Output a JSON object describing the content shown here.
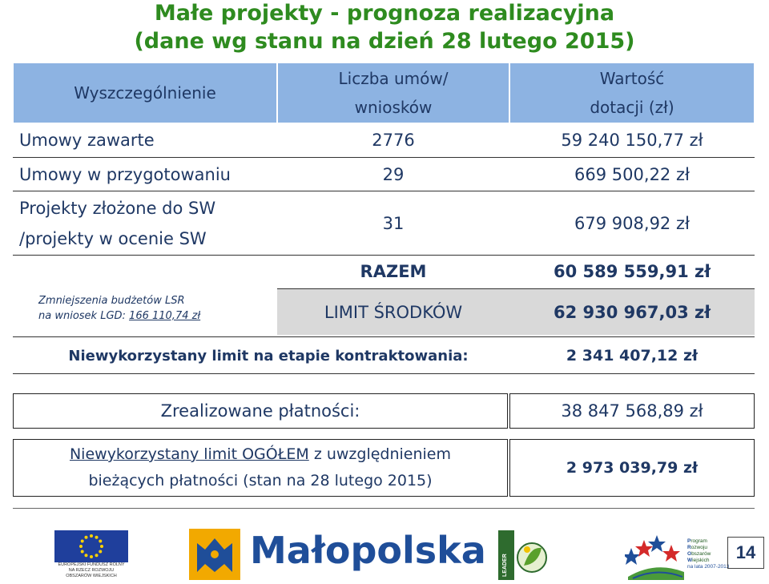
{
  "title": {
    "line1": "Małe projekty - prognoza realizacyjna",
    "line2": "(dane wg stanu na dzień 28 lutego 2015)"
  },
  "table": {
    "headers": {
      "col1": "Wyszczególnienie",
      "col2_line1": "Liczba umów/",
      "col2_line2": "wniosków",
      "col3_line1": "Wartość",
      "col3_line2": "dotacji (zł)"
    },
    "rows": [
      {
        "label": "Umowy zawarte",
        "count": "2776",
        "value": "59 240 150,77 zł"
      },
      {
        "label": "Umowy w przygotowaniu",
        "count": "29",
        "value": "669 500,22 zł"
      },
      {
        "label_line1": "Projekty złożone do SW",
        "label_line2": "/projekty w ocenie SW",
        "count": "31",
        "value": "679 908,92 zł"
      }
    ],
    "reduction_note": {
      "line1": "Zmniejszenia budżetów LSR",
      "line2_prefix": "na wniosek LGD:  ",
      "line2_amount": "166 110,74 zł"
    },
    "razem": {
      "label": "RAZEM",
      "value": "60 589 559,91 zł"
    },
    "limit": {
      "label": "LIMIT ŚRODKÓW",
      "value": "62 930 967,03 zł"
    },
    "unused_limit_contracting": {
      "label": "Niewykorzystany limit na etapie kontraktowania:",
      "value": "2 341 407,12 zł"
    },
    "payments": {
      "label": "Zrealizowane płatności:",
      "value": "38 847 568,89 zł"
    },
    "unused_total": {
      "line1_underlined": "Niewykorzystany limit OGÓŁEM",
      "line1_rest": "  z uwzględnieniem",
      "line2": "bieżących płatności (stan na 28 lutego 2015)",
      "value": "2 973 039,79 zł"
    }
  },
  "footer": {
    "eu_label": [
      "EUROPEJSKI FUNDUSZ ROLNY",
      "NA RZECZ ROZWOJU",
      "OBSZARÓW WIEJSKICH"
    ],
    "malopolska": "Małopolska",
    "leader": "LEADER",
    "prow_lines": [
      {
        "letter": "P",
        "rest": "rogram"
      },
      {
        "letter": "R",
        "rest": "ozwoju"
      },
      {
        "letter": "O",
        "rest": "bszarów"
      },
      {
        "letter": "W",
        "rest": "iejskich"
      }
    ],
    "prow_years": "na lata 2007-2013",
    "page_number": "14"
  },
  "colors": {
    "title_green": "#2e8b1f",
    "header_blue": "#8db3e2",
    "text_navy": "#1f3864",
    "highlight_gray": "#d9d9d9"
  }
}
